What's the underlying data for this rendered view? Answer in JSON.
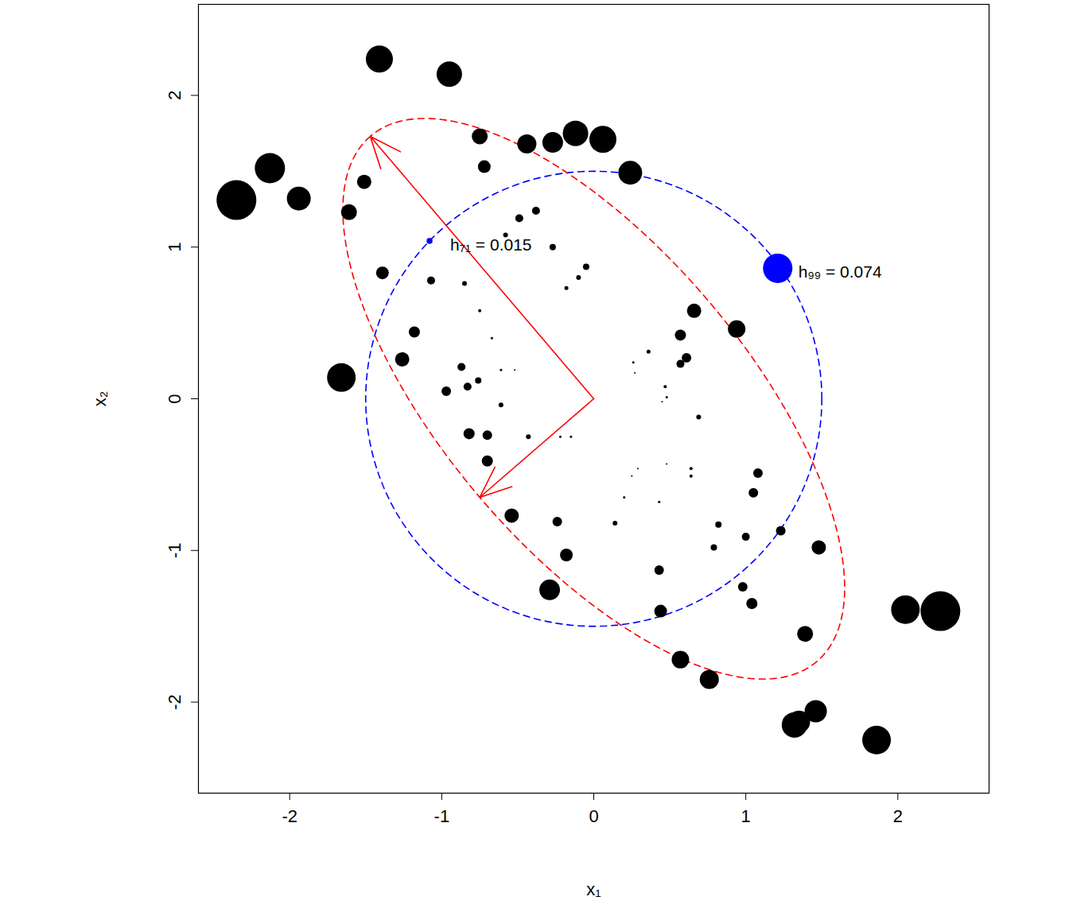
{
  "chart_data": {
    "type": "scatter",
    "xlabel": "x₁",
    "ylabel": "x₂",
    "xlim": [
      -2.6,
      2.6
    ],
    "ylim": [
      -2.6,
      2.6
    ],
    "xticks": [
      -2,
      -1,
      0,
      1,
      2
    ],
    "yticks": [
      -2,
      -1,
      0,
      1,
      2
    ],
    "color": "black",
    "points": {
      "x": [
        -1.41,
        -0.95,
        -2.35,
        -2.13,
        -1.94,
        -1.61,
        -1.51,
        -1.66,
        -1.39,
        -0.75,
        -0.72,
        -0.44,
        -0.27,
        -0.12,
        0.06,
        0.24,
        -0.27,
        -0.38,
        -0.49,
        -0.58,
        -1.07,
        -0.85,
        -0.05,
        -0.1,
        -0.18,
        -1.18,
        -1.26,
        -0.87,
        -0.76,
        -0.97,
        -0.83,
        -0.75,
        -0.67,
        -0.61,
        -0.52,
        -0.61,
        -0.82,
        -0.7,
        -0.7,
        -0.43,
        -0.22,
        -0.54,
        -0.24,
        -0.18,
        -0.29,
        0.14,
        0.36,
        0.26,
        0.27,
        0.66,
        0.57,
        0.61,
        0.57,
        0.94,
        0.47,
        0.48,
        0.45,
        0.69,
        0.64,
        0.64,
        0.48,
        0.29,
        0.25,
        0.2,
        0.43,
        1.08,
        1.05,
        0.82,
        1.0,
        0.79,
        1.23,
        1.48,
        0.98,
        1.04,
        0.43,
        0.44,
        0.57,
        0.76,
        1.39,
        2.05,
        2.28,
        1.32,
        1.35,
        1.46,
        1.86,
        -0.15
      ],
      "y": [
        2.24,
        2.14,
        1.31,
        1.52,
        1.32,
        1.23,
        1.43,
        0.14,
        0.83,
        1.73,
        1.53,
        1.68,
        1.69,
        1.75,
        1.71,
        1.49,
        1.0,
        1.24,
        1.19,
        1.08,
        0.78,
        0.76,
        0.87,
        0.8,
        0.73,
        0.44,
        0.26,
        0.21,
        0.12,
        0.05,
        0.08,
        0.58,
        0.4,
        0.19,
        0.19,
        -0.04,
        -0.23,
        -0.24,
        -0.41,
        -0.25,
        -0.25,
        -0.77,
        -0.81,
        -1.03,
        -1.26,
        -0.82,
        0.31,
        0.24,
        0.17,
        0.58,
        0.42,
        0.27,
        0.23,
        0.46,
        0.08,
        0.01,
        -0.02,
        -0.12,
        -0.46,
        -0.51,
        -0.43,
        -0.46,
        -0.51,
        -0.65,
        -0.68,
        -0.49,
        -0.62,
        -0.83,
        -0.91,
        -0.98,
        -0.87,
        -0.98,
        -1.24,
        -1.35,
        -1.13,
        -1.4,
        -1.72,
        -1.85,
        -1.55,
        -1.39,
        -1.4,
        -2.15,
        -2.13,
        -2.06,
        -2.25,
        -0.25
      ],
      "h": [
        0.068,
        0.064,
        0.1,
        0.076,
        0.06,
        0.04,
        0.036,
        0.072,
        0.032,
        0.04,
        0.032,
        0.048,
        0.052,
        0.064,
        0.068,
        0.06,
        0.016,
        0.02,
        0.02,
        0.012,
        0.02,
        0.012,
        0.016,
        0.012,
        0.01,
        0.028,
        0.036,
        0.02,
        0.016,
        0.024,
        0.02,
        0.008,
        0.006,
        0.006,
        0.004,
        0.012,
        0.028,
        0.024,
        0.028,
        0.012,
        0.006,
        0.036,
        0.024,
        0.032,
        0.052,
        0.012,
        0.01,
        0.006,
        0.004,
        0.036,
        0.028,
        0.024,
        0.02,
        0.044,
        0.008,
        0.006,
        0.004,
        0.012,
        0.008,
        0.008,
        0.004,
        0.004,
        0.004,
        0.006,
        0.006,
        0.024,
        0.024,
        0.016,
        0.02,
        0.016,
        0.024,
        0.036,
        0.024,
        0.028,
        0.024,
        0.032,
        0.044,
        0.048,
        0.04,
        0.072,
        0.1,
        0.064,
        0.056,
        0.056,
        0.072,
        0.006
      ]
    },
    "annotations": [
      {
        "x": -1.08,
        "y": 1.04,
        "h": 0.015,
        "label": "h₇₁ = 0.015",
        "color": "blue"
      },
      {
        "x": 1.21,
        "y": 0.86,
        "h": 0.074,
        "label": "h₉₉ = 0.074",
        "color": "blue"
      }
    ],
    "ellipses": [
      {
        "center": [
          0,
          0
        ],
        "axes": [
          [
            1.5,
            0
          ],
          [
            0,
            1.5
          ]
        ],
        "color": "blue",
        "line_style": "dashed"
      },
      {
        "center": [
          0,
          0
        ],
        "axes": [
          [
            -1.47,
            1.73
          ],
          [
            -0.75,
            -0.65
          ]
        ],
        "color": "red",
        "line_style": "dashed"
      }
    ],
    "arrows": [
      {
        "from": [
          0,
          0
        ],
        "to": [
          -1.47,
          1.73
        ],
        "color": "red"
      },
      {
        "from": [
          0,
          0
        ],
        "to": [
          -0.75,
          -0.65
        ],
        "color": "red"
      }
    ]
  }
}
